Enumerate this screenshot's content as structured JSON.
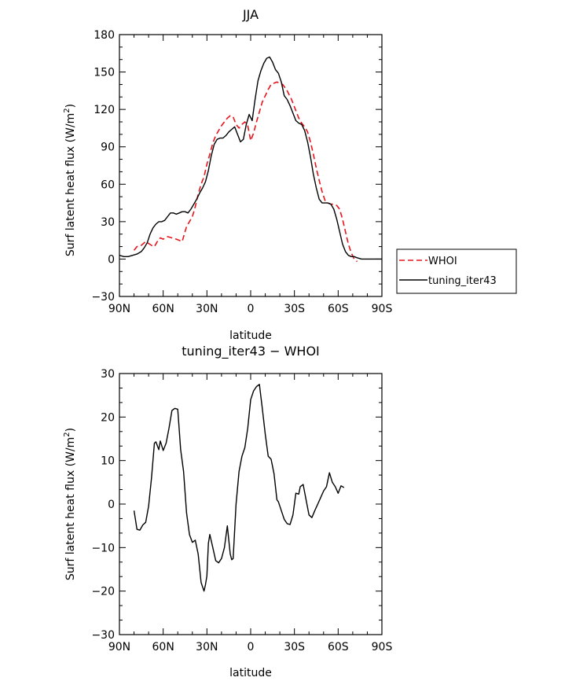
{
  "chart_data": [
    {
      "type": "line",
      "title": "JJA",
      "xlabel": "latitude",
      "ylabel_main": "Surf latent heat flux (W/m",
      "ylabel_sup": "2",
      "ylabel_close": ")",
      "xlim": [
        90,
        -90
      ],
      "ylim": [
        -30,
        180
      ],
      "xtick_values": [
        90,
        60,
        30,
        0,
        -30,
        -60,
        -90
      ],
      "xtick_labels": [
        "90N",
        "60N",
        "30N",
        "0",
        "30S",
        "60S",
        "90S"
      ],
      "ytick_values": [
        -30,
        0,
        30,
        60,
        90,
        120,
        150,
        180
      ],
      "ytick_labels": [
        "−30",
        "0",
        "30",
        "60",
        "90",
        "120",
        "150",
        "180"
      ],
      "legend": {
        "placement": "right",
        "entries": [
          "WHOI",
          "tuning_iter43"
        ]
      },
      "series": [
        {
          "name": "WHOI",
          "color": "#e8141c",
          "dash": "dashed",
          "x": [
            80,
            78,
            75,
            72,
            68,
            66,
            64,
            62,
            60,
            57,
            54,
            51,
            49,
            47,
            44,
            42,
            40,
            38,
            36,
            34,
            32,
            30,
            28,
            26,
            24,
            22,
            20,
            18,
            16,
            14,
            12,
            10,
            8,
            6,
            4,
            2,
            0,
            -2,
            -4,
            -6,
            -8,
            -10,
            -12,
            -14,
            -16,
            -18,
            -20,
            -22,
            -25,
            -28,
            -31,
            -33,
            -35,
            -37,
            -39,
            -41,
            -43,
            -45,
            -47,
            -49,
            -51,
            -53,
            -55,
            -57,
            -59,
            -61,
            -63,
            -65,
            -67,
            -69,
            -71,
            -73
          ],
          "y": [
            7,
            10,
            11,
            14,
            11,
            10,
            14,
            17,
            16,
            18,
            17,
            16,
            15,
            14,
            26,
            30,
            34,
            42,
            52,
            60,
            66,
            76,
            84,
            93,
            99,
            103,
            107,
            110,
            113,
            115,
            114,
            108,
            105,
            108,
            110,
            107,
            95,
            101,
            110,
            118,
            126,
            131,
            136,
            140,
            141,
            142,
            141,
            140,
            135,
            128,
            119,
            113,
            109,
            106,
            102,
            94,
            84,
            73,
            63,
            54,
            47,
            45,
            44,
            44,
            43,
            40,
            32,
            22,
            12,
            5,
            0,
            -2
          ]
        },
        {
          "name": "tuning_iter43",
          "color": "#000000",
          "dash": "solid",
          "x": [
            90,
            87,
            84,
            81,
            78,
            75,
            73,
            71,
            69,
            67,
            65,
            63,
            61,
            59,
            57,
            55,
            53,
            51,
            49,
            47,
            45,
            43,
            41,
            39,
            37,
            35,
            33,
            31,
            29,
            27,
            25,
            23,
            21,
            19,
            17,
            15,
            13,
            11,
            9,
            7,
            5,
            3,
            1,
            -1,
            -3,
            -5,
            -7,
            -9,
            -11,
            -13,
            -15,
            -17,
            -19,
            -21,
            -23,
            -25,
            -27,
            -29,
            -31,
            -33,
            -35,
            -37,
            -39,
            -41,
            -43,
            -45,
            -47,
            -49,
            -51,
            -53,
            -55,
            -57,
            -59,
            -61,
            -63,
            -65,
            -67,
            -69,
            -71,
            -73,
            -76,
            -79,
            -82,
            -85,
            -88,
            -90
          ],
          "y": [
            3,
            2,
            2,
            3,
            4,
            6,
            9,
            13,
            20,
            25,
            28,
            30,
            30,
            31,
            34,
            37,
            37,
            36,
            37,
            38,
            38,
            37,
            40,
            44,
            48,
            53,
            57,
            62,
            71,
            83,
            92,
            96,
            97,
            97,
            99,
            102,
            104,
            106,
            100,
            94,
            96,
            108,
            116,
            111,
            128,
            143,
            151,
            157,
            161,
            162,
            158,
            152,
            149,
            142,
            131,
            128,
            123,
            117,
            111,
            109,
            108,
            103,
            94,
            82,
            68,
            57,
            48,
            45,
            45,
            45,
            44,
            40,
            32,
            22,
            12,
            6,
            3,
            2,
            2,
            1,
            0,
            0,
            0,
            0,
            0,
            0
          ]
        }
      ]
    },
    {
      "type": "line",
      "title": "tuning_iter43 − WHOI",
      "xlabel": "latitude",
      "ylabel_main": "Surf latent heat flux (W/m",
      "ylabel_sup": "2",
      "ylabel_close": ")",
      "xlim": [
        90,
        -90
      ],
      "ylim": [
        -30,
        30
      ],
      "xtick_values": [
        90,
        60,
        30,
        0,
        -30,
        -60,
        -90
      ],
      "xtick_labels": [
        "90N",
        "60N",
        "30N",
        "0",
        "30S",
        "60S",
        "90S"
      ],
      "ytick_values": [
        -30,
        -20,
        -10,
        0,
        10,
        20,
        30
      ],
      "ytick_labels": [
        "−30",
        "−20",
        "−10",
        "0",
        "10",
        "20",
        "30"
      ],
      "series": [
        {
          "color": "#000000",
          "dash": "solid",
          "x": [
            80,
            78,
            76,
            74,
            72,
            70,
            68,
            66,
            65,
            63,
            62,
            60,
            58,
            56,
            54,
            52,
            50,
            48,
            46,
            44,
            42,
            40,
            38,
            36,
            34,
            32,
            31,
            30,
            29,
            28,
            26,
            24,
            22,
            20,
            18,
            16,
            14,
            13,
            12,
            10,
            8,
            6,
            4,
            2,
            0,
            -2,
            -4,
            -6,
            -8,
            -10,
            -12,
            -14,
            -16,
            -18,
            -19,
            -21,
            -23,
            -25,
            -27,
            -29,
            -31,
            -33,
            -34,
            -36,
            -38,
            -40,
            -42,
            -44,
            -46,
            -48,
            -50,
            -52,
            -54,
            -56,
            -58,
            -60,
            -62,
            -64,
            -66,
            -68,
            -70,
            -72
          ],
          "y": [
            -1.5,
            -5.8,
            -6,
            -4.8,
            -4.2,
            -0.5,
            6,
            14,
            14.3,
            12.5,
            14.5,
            12.3,
            14,
            17.5,
            21.5,
            22,
            21.8,
            12.5,
            7.5,
            -2,
            -7,
            -8.8,
            -8.3,
            -11.5,
            -18,
            -20,
            -18.5,
            -16.5,
            -9,
            -7,
            -10,
            -13,
            -13.5,
            -12.5,
            -10,
            -5,
            -11.5,
            -12.8,
            -12.5,
            0,
            7.5,
            11,
            13,
            17.5,
            24,
            26,
            27,
            27.5,
            22,
            16,
            11,
            10.3,
            7,
            1,
            0.5,
            -1.5,
            -3.5,
            -4.5,
            -4.7,
            -2.5,
            2.5,
            2.3,
            4,
            4.5,
            1,
            -2.5,
            -3.1,
            -1.5,
            0,
            1.5,
            3,
            4,
            7.2,
            5,
            4,
            2.5,
            4.2,
            3.8,
            null,
            null,
            null,
            null
          ]
        }
      ]
    }
  ]
}
